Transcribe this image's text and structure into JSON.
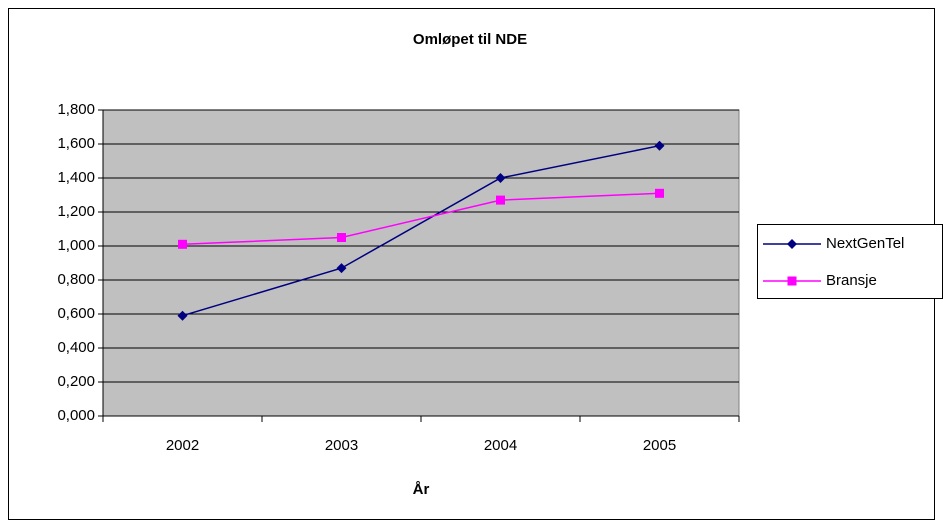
{
  "chart_data": {
    "type": "line",
    "title": "Omløpet til NDE",
    "x_label": "År",
    "categories": [
      "2002",
      "2003",
      "2004",
      "2005"
    ],
    "series": [
      {
        "name": "NextGenTel",
        "color": "#000080",
        "marker": "diamond",
        "values": [
          0.59,
          0.87,
          1.4,
          1.59
        ]
      },
      {
        "name": "Bransje",
        "color": "#ff00ff",
        "marker": "square",
        "values": [
          1.01,
          1.05,
          1.27,
          1.31
        ]
      }
    ],
    "ylim": [
      0,
      1.8
    ],
    "yticks": [
      {
        "value": 0,
        "label": "0,000"
      },
      {
        "value": 0.2,
        "label": "0,200"
      },
      {
        "value": 0.4,
        "label": "0,400"
      },
      {
        "value": 0.6,
        "label": "0,600"
      },
      {
        "value": 0.8,
        "label": "0,800"
      },
      {
        "value": 1.0,
        "label": "1,000"
      },
      {
        "value": 1.2,
        "label": "1,200"
      },
      {
        "value": 1.4,
        "label": "1,400"
      },
      {
        "value": 1.6,
        "label": "1,600"
      },
      {
        "value": 1.8,
        "label": "1,800"
      }
    ],
    "grid": true,
    "plot_background": "#c0c0c0",
    "legend": "right"
  }
}
